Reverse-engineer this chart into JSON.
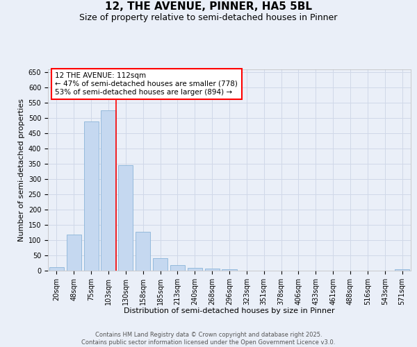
{
  "title": "12, THE AVENUE, PINNER, HA5 5BL",
  "subtitle": "Size of property relative to semi-detached houses in Pinner",
  "xlabel": "Distribution of semi-detached houses by size in Pinner",
  "ylabel": "Number of semi-detached properties",
  "categories": [
    "20sqm",
    "48sqm",
    "75sqm",
    "103sqm",
    "130sqm",
    "158sqm",
    "185sqm",
    "213sqm",
    "240sqm",
    "268sqm",
    "296sqm",
    "323sqm",
    "351sqm",
    "378sqm",
    "406sqm",
    "433sqm",
    "461sqm",
    "488sqm",
    "516sqm",
    "543sqm",
    "571sqm"
  ],
  "values": [
    11,
    118,
    490,
    525,
    345,
    127,
    42,
    18,
    8,
    7,
    4,
    0,
    0,
    0,
    0,
    0,
    0,
    0,
    0,
    0,
    5
  ],
  "bar_color": "#c5d8f0",
  "bar_edge_color": "#8ab4d8",
  "grid_color": "#d0d8e8",
  "background_color": "#eaeff8",
  "vline_position": 3.425,
  "vline_color": "red",
  "annotation_text": "12 THE AVENUE: 112sqm\n← 47% of semi-detached houses are smaller (778)\n53% of semi-detached houses are larger (894) →",
  "annotation_box_color": "white",
  "annotation_box_edge_color": "red",
  "ylim": [
    0,
    660
  ],
  "yticks": [
    0,
    50,
    100,
    150,
    200,
    250,
    300,
    350,
    400,
    450,
    500,
    550,
    600,
    650
  ],
  "footer_text": "Contains HM Land Registry data © Crown copyright and database right 2025.\nContains public sector information licensed under the Open Government Licence v3.0.",
  "title_fontsize": 11,
  "subtitle_fontsize": 9,
  "axis_label_fontsize": 8,
  "tick_fontsize": 7,
  "annotation_fontsize": 7.5,
  "footer_fontsize": 6
}
